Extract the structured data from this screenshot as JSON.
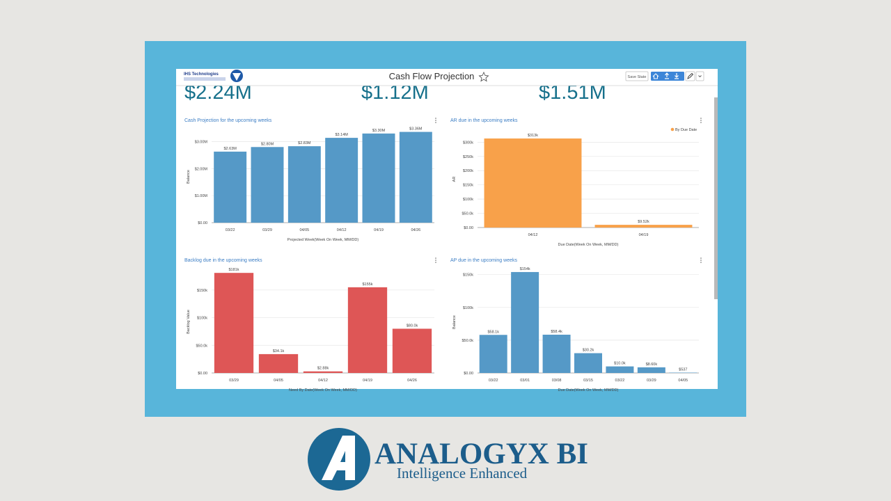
{
  "header": {
    "logo": "IHS Technologies",
    "title": "Cash Flow Projection",
    "button": "Save State"
  },
  "kpis": [
    "$2.24M",
    "$1.12M",
    "$1.51M"
  ],
  "brand": {
    "name": "ANALOGYX BI",
    "tagline": "Intelligence Enhanced"
  },
  "chart_data": [
    {
      "type": "bar",
      "title": "Cash Projection for the upcoming weeks",
      "x_label": "Projected Week(Week On Week, MM/DD)",
      "y_label": "Balance",
      "categories": [
        "03/22",
        "03/29",
        "04/05",
        "04/12",
        "04/19",
        "04/26"
      ],
      "series": [
        {
          "color": "#5599c7",
          "values": [
            2630000,
            2800000,
            2830000,
            3140000,
            3300000,
            3360000
          ],
          "value_labels": [
            "$2.63M",
            "$2.80M",
            "$2.83M",
            "$3.14M",
            "$3.30M",
            "$3.36M"
          ]
        }
      ],
      "ylim": [
        0,
        3400000
      ],
      "yticks": [
        {
          "value": 0,
          "label": "$0.00"
        },
        {
          "value": 1000000,
          "label": "$1.00M"
        },
        {
          "value": 2000000,
          "label": "$2.00M"
        },
        {
          "value": 3000000,
          "label": "$3.00M"
        }
      ],
      "grid": true
    },
    {
      "type": "bar",
      "title": "AR due in the upcoming weeks",
      "x_label": "Due Date(Week On Week, MM/DD)",
      "y_label": "AR",
      "categories": [
        "04/12",
        "04/19"
      ],
      "series": [
        {
          "name": "By Due Date",
          "color": "#f8a14a",
          "values": [
            313000,
            9520
          ],
          "value_labels": [
            "$313k",
            "$9.52k"
          ]
        }
      ],
      "legend": "top-right",
      "ylim": [
        0,
        340000
      ],
      "yticks": [
        {
          "value": 0,
          "label": "$0.00"
        },
        {
          "value": 50000,
          "label": "$50.0k"
        },
        {
          "value": 100000,
          "label": "$100k"
        },
        {
          "value": 150000,
          "label": "$150k"
        },
        {
          "value": 200000,
          "label": "$200k"
        },
        {
          "value": 250000,
          "label": "$250k"
        },
        {
          "value": 300000,
          "label": "$300k"
        }
      ],
      "grid": true
    },
    {
      "type": "bar",
      "title": "Backlog due in the upcoming weeks",
      "x_label": "Need By Date(Week On Week, MM/DD)",
      "y_label": "Backlog Value",
      "categories": [
        "03/29",
        "04/05",
        "04/12",
        "04/19",
        "04/26"
      ],
      "series": [
        {
          "color": "#de5656",
          "values": [
            181000,
            34100,
            2880,
            155000,
            80000
          ],
          "value_labels": [
            "$181k",
            "$34.1k",
            "$2.88k",
            "$155k",
            "$80.0k"
          ]
        }
      ],
      "ylim": [
        0,
        185000
      ],
      "yticks": [
        {
          "value": 0,
          "label": "$0.00"
        },
        {
          "value": 50000,
          "label": "$50.0k"
        },
        {
          "value": 100000,
          "label": "$100k"
        },
        {
          "value": 150000,
          "label": "$150k"
        }
      ],
      "grid": true
    },
    {
      "type": "bar",
      "title": "AP due in the upcoming weeks",
      "x_label": "Due Date(Week On Week, MM/DD)",
      "y_label": "Balance",
      "categories": [
        "03/22",
        "03/01",
        "03/08",
        "03/15",
        "03/22",
        "03/29",
        "04/05"
      ],
      "series": [
        {
          "color": "#5599c7",
          "values": [
            58100,
            154000,
            58400,
            30200,
            10000,
            8600,
            537
          ],
          "value_labels": [
            "$58.1k",
            "$154k",
            "$58.4k",
            "$30.2k",
            "$10.0k",
            "$8.60k",
            "$537"
          ]
        }
      ],
      "ylim": [
        0,
        155000
      ],
      "yticks": [
        {
          "value": 0,
          "label": "$0.00"
        },
        {
          "value": 50000,
          "label": "$50.0k"
        },
        {
          "value": 100000,
          "label": "$100k"
        },
        {
          "value": 150000,
          "label": "$150k"
        }
      ],
      "grid": true
    }
  ]
}
